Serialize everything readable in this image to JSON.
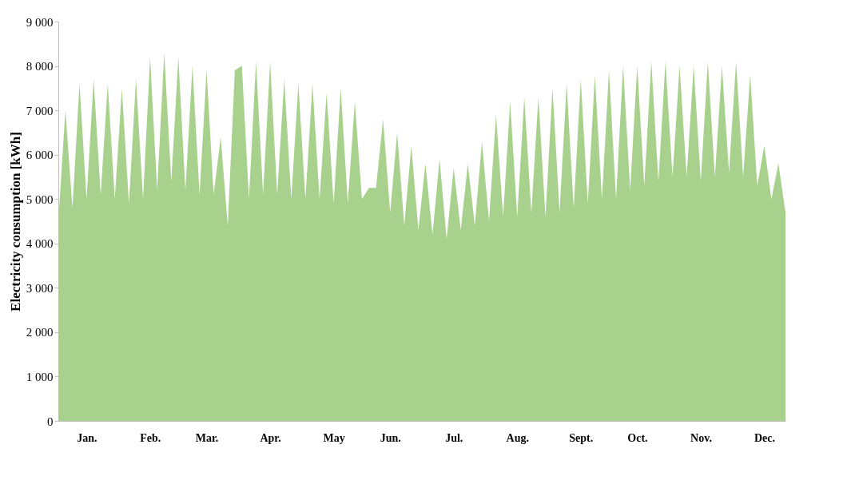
{
  "chart_data": {
    "type": "area",
    "ylabel": "Electricity consumption [kWh]",
    "categories": [
      null,
      null,
      null,
      null,
      "Jan.",
      null,
      null,
      null,
      null,
      null,
      null,
      null,
      null,
      "Feb.",
      null,
      null,
      null,
      null,
      null,
      null,
      null,
      "Mar.",
      null,
      null,
      null,
      null,
      null,
      null,
      null,
      null,
      "Apr.",
      null,
      null,
      null,
      null,
      null,
      null,
      null,
      null,
      "May",
      null,
      null,
      null,
      null,
      null,
      null,
      null,
      "Jun.",
      null,
      null,
      null,
      null,
      null,
      null,
      null,
      null,
      "Jul.",
      null,
      null,
      null,
      null,
      null,
      null,
      null,
      null,
      "Aug.",
      null,
      null,
      null,
      null,
      null,
      null,
      null,
      null,
      "Sept.",
      null,
      null,
      null,
      null,
      null,
      null,
      null,
      "Oct.",
      null,
      null,
      null,
      null,
      null,
      null,
      null,
      null,
      "Nov.",
      null,
      null,
      null,
      null,
      null,
      null,
      null,
      null,
      "Dec.",
      null,
      null,
      null
    ],
    "series": [
      {
        "color": "#a9d18e",
        "values": [
          4500,
          7000,
          4800,
          7600,
          5000,
          7700,
          5100,
          7600,
          5000,
          7500,
          4900,
          7700,
          5000,
          8200,
          5200,
          8300,
          5400,
          8200,
          5200,
          8000,
          5100,
          7900,
          5100,
          6400,
          4400,
          7900,
          8000,
          5000,
          8100,
          5100,
          8100,
          5100,
          7700,
          5000,
          7600,
          5000,
          7600,
          5000,
          7400,
          4900,
          7500,
          4900,
          7200,
          5000,
          5250,
          5250,
          6800,
          4700,
          6500,
          4400,
          6200,
          4300,
          5800,
          4200,
          5900,
          4100,
          5700,
          4300,
          5800,
          4400,
          6300,
          4500,
          6900,
          4600,
          7200,
          4600,
          7300,
          4700,
          7300,
          4600,
          7500,
          4700,
          7600,
          4800,
          7700,
          4900,
          7800,
          5000,
          7900,
          5000,
          8000,
          5200,
          8000,
          5300,
          8100,
          5400,
          8100,
          5500,
          8000,
          5500,
          8000,
          5400,
          8100,
          5500,
          8000,
          5600,
          8100,
          5500,
          7800,
          5300,
          6200,
          5000,
          5800,
          4700
        ]
      }
    ],
    "ylim": [
      0,
      9000
    ],
    "yticks": [
      0,
      {
        "value": 1000,
        "label": "1 000"
      },
      {
        "value": 2000,
        "label": "2 000"
      },
      {
        "value": 3000,
        "label": "3 000"
      },
      {
        "value": 4000,
        "label": "4 000"
      },
      {
        "value": 5000,
        "label": "5 000"
      },
      {
        "value": 6000,
        "label": "6 000"
      },
      {
        "value": 7000,
        "label": "7 000"
      },
      {
        "value": 8000,
        "label": "8 000"
      },
      {
        "value": 9000,
        "label": "9 000"
      }
    ],
    "grid": false
  }
}
